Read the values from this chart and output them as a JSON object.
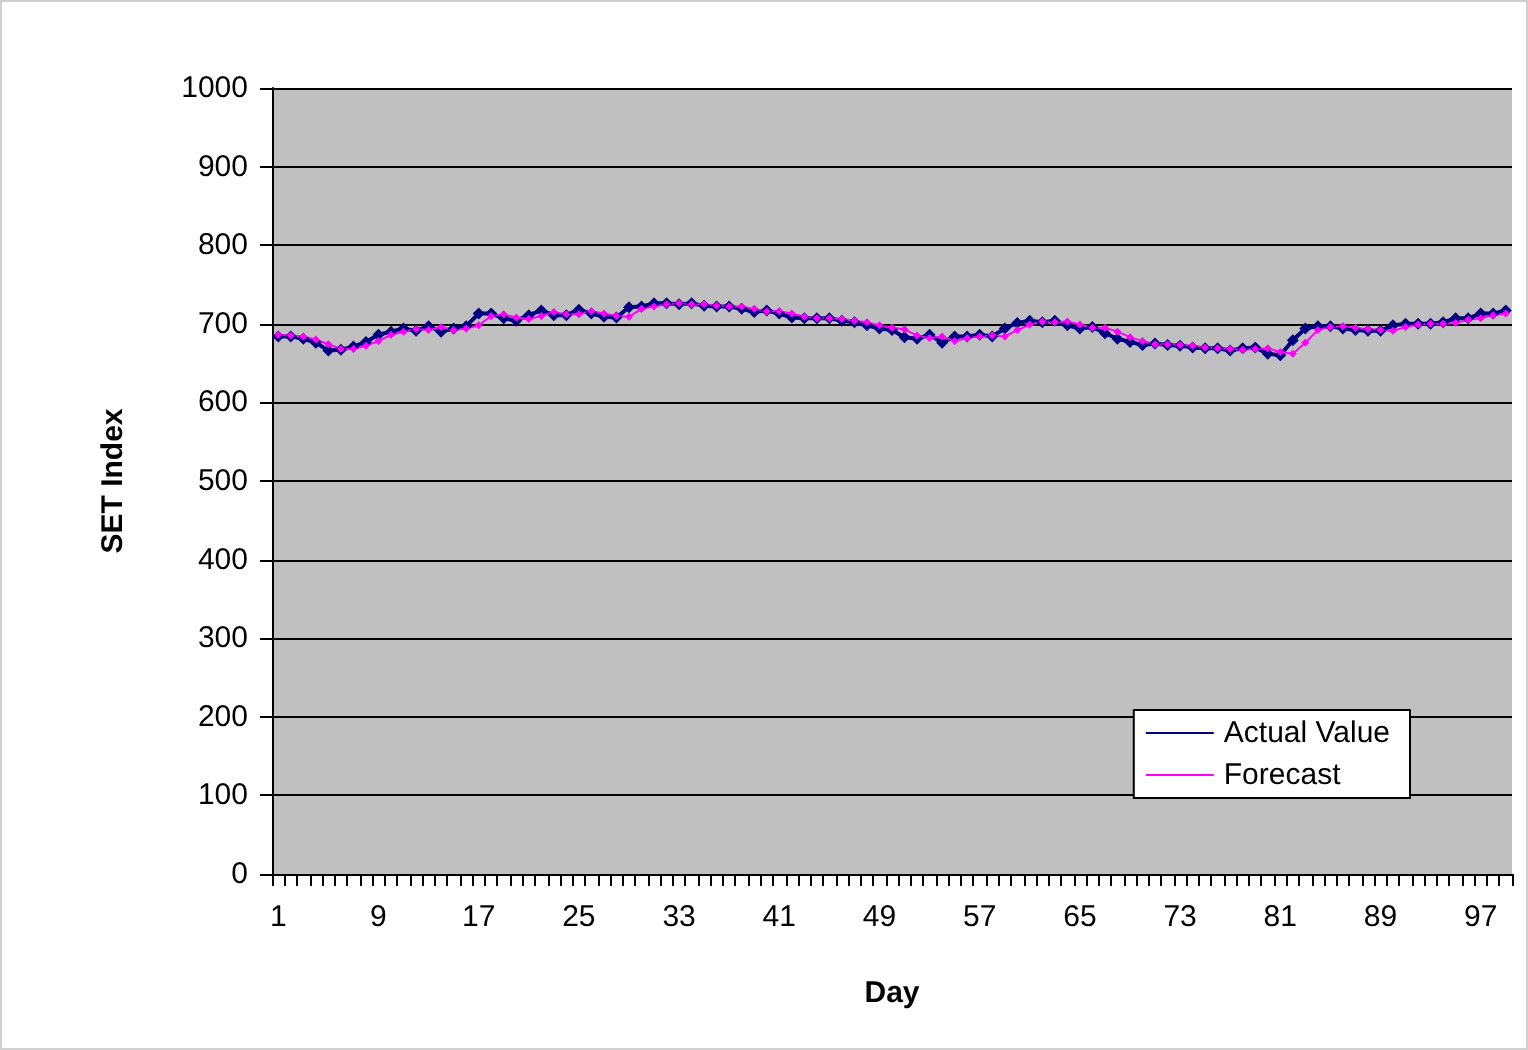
{
  "chart_data": {
    "type": "line",
    "xlabel": "Day",
    "ylabel": "SET Index",
    "categories": [
      "1",
      null,
      null,
      null,
      null,
      null,
      null,
      null,
      "9",
      null,
      null,
      null,
      null,
      null,
      null,
      null,
      "17",
      null,
      null,
      null,
      null,
      null,
      null,
      null,
      "25",
      null,
      null,
      null,
      null,
      null,
      null,
      null,
      "33",
      null,
      null,
      null,
      null,
      null,
      null,
      null,
      "41",
      null,
      null,
      null,
      null,
      null,
      null,
      null,
      "49",
      null,
      null,
      null,
      null,
      null,
      null,
      null,
      "57",
      null,
      null,
      null,
      null,
      null,
      null,
      null,
      "65",
      null,
      null,
      null,
      null,
      null,
      null,
      null,
      "73",
      null,
      null,
      null,
      null,
      null,
      null,
      null,
      "81",
      null,
      null,
      null,
      null,
      null,
      null,
      null,
      "89",
      null,
      null,
      null,
      null,
      null,
      null,
      null,
      "97",
      null,
      null
    ],
    "series": [
      {
        "name": "Actual Value",
        "color": "#000080",
        "values": [
          684,
          684,
          681,
          676,
          666,
          667,
          671,
          677,
          686,
          690,
          694,
          691,
          697,
          690,
          694,
          697,
          713,
          713,
          707,
          704,
          711,
          717,
          711,
          711,
          718,
          713,
          709,
          708,
          721,
          722,
          726,
          726,
          725,
          726,
          723,
          722,
          722,
          719,
          715,
          717,
          713,
          708,
          707,
          707,
          707,
          704,
          702,
          698,
          694,
          692,
          683,
          681,
          686,
          676,
          684,
          684,
          686,
          684,
          694,
          701,
          704,
          702,
          704,
          698,
          694,
          696,
          688,
          681,
          677,
          673,
          675,
          673,
          672,
          670,
          669,
          669,
          666,
          669,
          670,
          662,
          660,
          679,
          694,
          697,
          697,
          694,
          692,
          691,
          691,
          698,
          700,
          700,
          700,
          702,
          707,
          707,
          713,
          713,
          717
        ]
      },
      {
        "name": "Forecast",
        "color": "#ff00ff",
        "values": [
          686,
          685,
          684,
          680,
          674,
          668,
          668,
          672,
          678,
          686,
          690,
          693,
          692,
          696,
          692,
          694,
          698,
          710,
          712,
          708,
          706,
          710,
          715,
          712,
          712,
          716,
          713,
          710,
          709,
          719,
          722,
          725,
          726,
          725,
          725,
          723,
          722,
          722,
          719,
          716,
          716,
          713,
          709,
          707,
          707,
          706,
          704,
          702,
          698,
          695,
          693,
          685,
          682,
          684,
          678,
          682,
          684,
          685,
          684,
          692,
          699,
          703,
          702,
          703,
          699,
          695,
          695,
          690,
          683,
          678,
          674,
          674,
          673,
          672,
          670,
          669,
          668,
          667,
          668,
          669,
          664,
          662,
          676,
          692,
          696,
          697,
          695,
          693,
          692,
          691,
          696,
          699,
          700,
          700,
          701,
          705,
          707,
          711,
          713
        ]
      }
    ],
    "ylim": [
      0,
      1000
    ],
    "yticks": [
      0,
      100,
      200,
      300,
      400,
      500,
      600,
      700,
      800,
      900,
      1000
    ],
    "grid": "y",
    "legend": "bottom right",
    "marker": "diamond",
    "line_style": "solid"
  }
}
